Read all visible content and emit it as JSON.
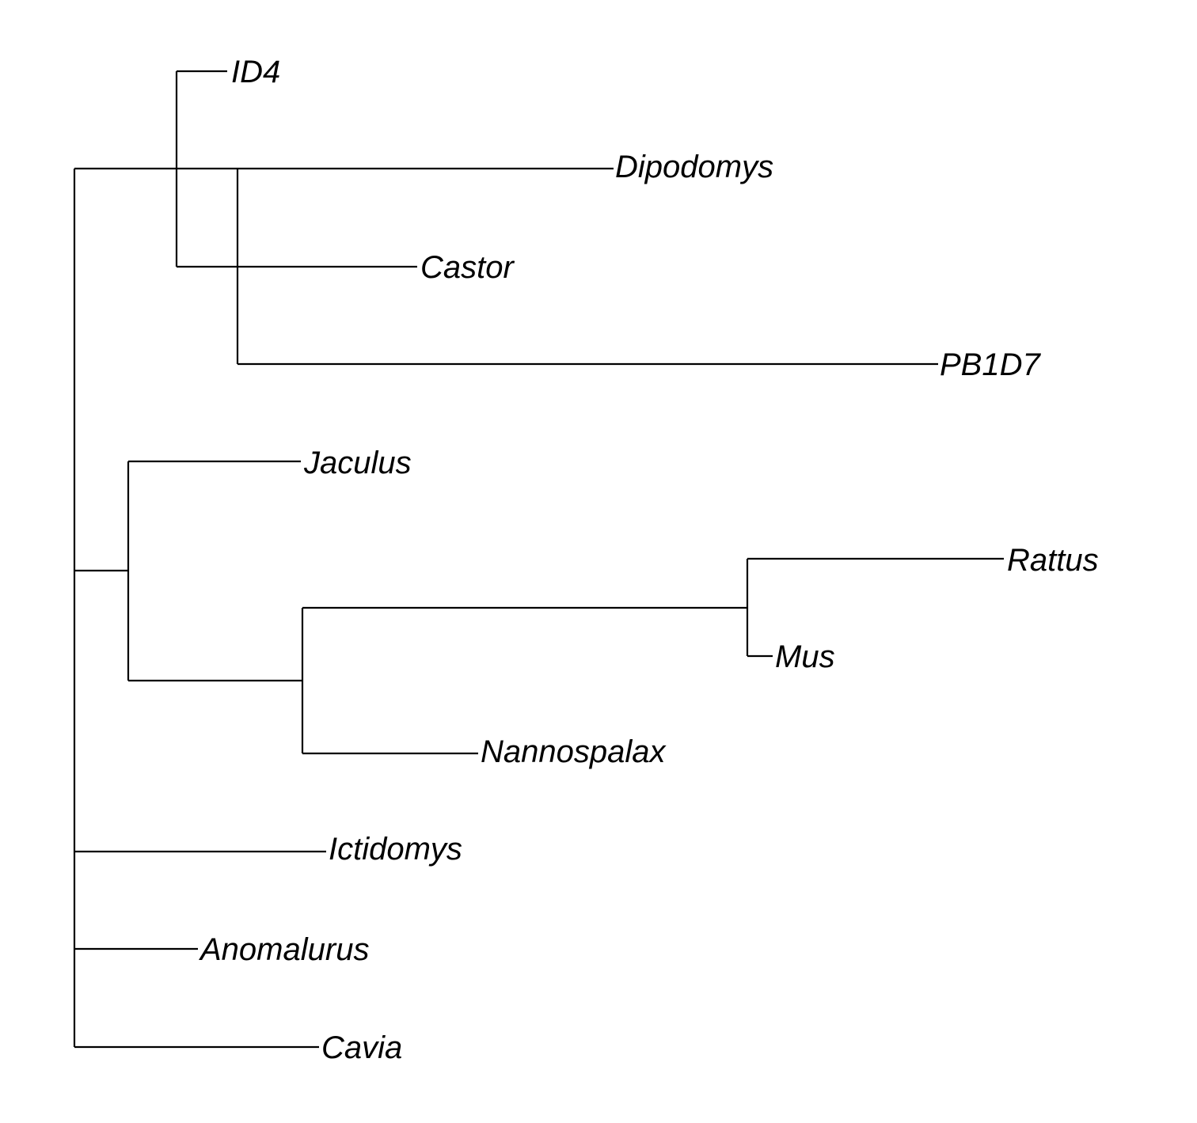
{
  "tree": {
    "tips": [
      {
        "id": "t1",
        "label": "ID4"
      },
      {
        "id": "t2",
        "label": "Dipodomys"
      },
      {
        "id": "t3",
        "label": "Castor"
      },
      {
        "id": "t4",
        "label": "PB1D7"
      },
      {
        "id": "t5",
        "label": "Jaculus"
      },
      {
        "id": "t6",
        "label": "Rattus"
      },
      {
        "id": "t7",
        "label": "Mus"
      },
      {
        "id": "t8",
        "label": "Nannospalax"
      },
      {
        "id": "t9",
        "label": "Ictidomys"
      },
      {
        "id": "t10",
        "label": "Anomalurus"
      },
      {
        "id": "t11",
        "label": "Cavia"
      }
    ]
  }
}
